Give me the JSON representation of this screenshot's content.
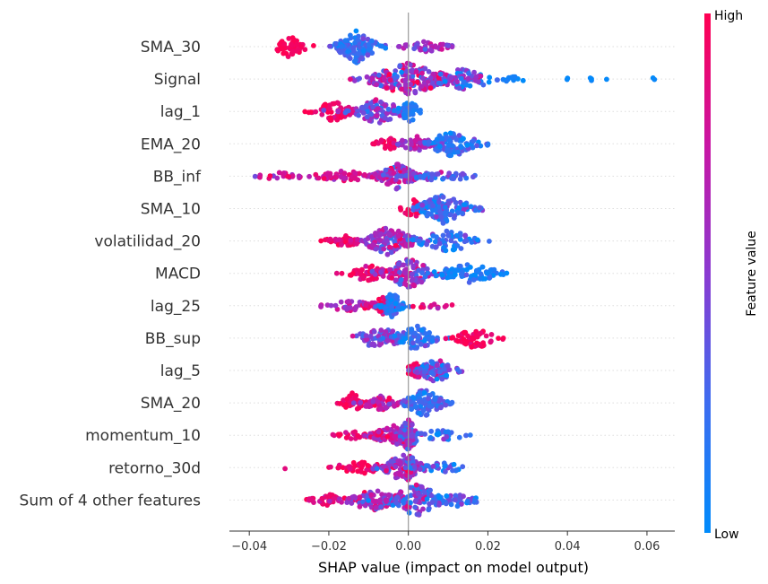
{
  "chart_data": {
    "type": "beeswarm",
    "xlabel": "SHAP value (impact on model output)",
    "xlim": [
      -0.045,
      0.067
    ],
    "xticks": [
      -0.04,
      -0.02,
      0.0,
      0.02,
      0.04,
      0.06
    ],
    "xtick_labels": [
      "−0.04",
      "−0.02",
      "0.00",
      "0.02",
      "0.04",
      "0.06"
    ],
    "colorbar": {
      "label": "Feature value",
      "high_label": "High",
      "low_label": "Low",
      "high_color": "#ff0052",
      "low_color": "#008bfb"
    },
    "features": [
      {
        "name": "SMA_30",
        "min": -0.033,
        "max": 0.011,
        "clusters": [
          {
            "center": -0.03,
            "spread": 0.0025,
            "n": 45,
            "value": 0.98,
            "vsd": 0.04,
            "height": 1.0
          },
          {
            "center": -0.013,
            "spread": 0.003,
            "n": 120,
            "value": 0.22,
            "vsd": 0.12,
            "height": 1.5
          },
          {
            "center": 0.004,
            "spread": 0.004,
            "n": 40,
            "value": 0.55,
            "vsd": 0.12,
            "height": 0.5
          }
        ]
      },
      {
        "name": "Signal",
        "min": -0.015,
        "max": 0.063,
        "clusters": [
          {
            "center": 0.0,
            "spread": 0.006,
            "n": 190,
            "value": 0.6,
            "vsd": 0.25,
            "height": 1.5
          },
          {
            "center": 0.014,
            "spread": 0.005,
            "n": 70,
            "value": 0.35,
            "vsd": 0.25,
            "height": 1.0
          },
          {
            "center": 0.027,
            "spread": 0.003,
            "n": 10,
            "value": 0.05,
            "vsd": 0.05,
            "height": 0.3
          },
          {
            "center": 0.045,
            "spread": 0.005,
            "n": 6,
            "value": 0.02,
            "vsd": 0.02,
            "height": 0.15
          },
          {
            "center": 0.0615,
            "spread": 0.0005,
            "n": 2,
            "value": 0.02,
            "vsd": 0.02,
            "height": 0.1
          }
        ]
      },
      {
        "name": "lag_1",
        "min": -0.026,
        "max": 0.003,
        "clusters": [
          {
            "center": -0.019,
            "spread": 0.003,
            "n": 60,
            "value": 0.92,
            "vsd": 0.08,
            "height": 1.0
          },
          {
            "center": -0.008,
            "spread": 0.004,
            "n": 90,
            "value": 0.5,
            "vsd": 0.2,
            "height": 1.2
          },
          {
            "center": 0.0,
            "spread": 0.0015,
            "n": 40,
            "value": 0.12,
            "vsd": 0.08,
            "height": 1.2
          }
        ]
      },
      {
        "name": "EMA_20",
        "min": -0.009,
        "max": 0.02,
        "clusters": [
          {
            "center": -0.005,
            "spread": 0.002,
            "n": 30,
            "value": 0.95,
            "vsd": 0.05,
            "height": 0.6
          },
          {
            "center": 0.002,
            "spread": 0.003,
            "n": 50,
            "value": 0.6,
            "vsd": 0.15,
            "height": 0.7
          },
          {
            "center": 0.011,
            "spread": 0.004,
            "n": 100,
            "value": 0.2,
            "vsd": 0.15,
            "height": 1.2
          }
        ]
      },
      {
        "name": "BB_inf",
        "min": -0.039,
        "max": 0.021,
        "clusters": [
          {
            "center": -0.032,
            "spread": 0.004,
            "n": 25,
            "value": 0.75,
            "vsd": 0.12,
            "height": 0.35
          },
          {
            "center": -0.016,
            "spread": 0.005,
            "n": 50,
            "value": 0.8,
            "vsd": 0.12,
            "height": 0.5
          },
          {
            "center": -0.003,
            "spread": 0.003,
            "n": 110,
            "value": 0.6,
            "vsd": 0.2,
            "height": 1.2
          },
          {
            "center": 0.008,
            "spread": 0.005,
            "n": 40,
            "value": 0.3,
            "vsd": 0.15,
            "height": 0.5
          }
        ]
      },
      {
        "name": "SMA_10",
        "min": -0.002,
        "max": 0.019,
        "clusters": [
          {
            "center": 0.001,
            "spread": 0.0015,
            "n": 40,
            "value": 0.95,
            "vsd": 0.05,
            "height": 1.0
          },
          {
            "center": 0.009,
            "spread": 0.004,
            "n": 130,
            "value": 0.25,
            "vsd": 0.15,
            "height": 1.4
          }
        ]
      },
      {
        "name": "volatilidad_20",
        "min": -0.023,
        "max": 0.023,
        "clusters": [
          {
            "center": -0.016,
            "spread": 0.003,
            "n": 40,
            "value": 0.9,
            "vsd": 0.1,
            "height": 0.5
          },
          {
            "center": -0.005,
            "spread": 0.004,
            "n": 120,
            "value": 0.6,
            "vsd": 0.2,
            "height": 1.3
          },
          {
            "center": 0.01,
            "spread": 0.005,
            "n": 70,
            "value": 0.25,
            "vsd": 0.2,
            "height": 1.0
          }
        ]
      },
      {
        "name": "MACD",
        "min": -0.018,
        "max": 0.026,
        "clusters": [
          {
            "center": -0.01,
            "spread": 0.003,
            "n": 60,
            "value": 0.9,
            "vsd": 0.08,
            "height": 0.8
          },
          {
            "center": 0.0,
            "spread": 0.004,
            "n": 110,
            "value": 0.55,
            "vsd": 0.2,
            "height": 1.4
          },
          {
            "center": 0.015,
            "spread": 0.005,
            "n": 80,
            "value": 0.12,
            "vsd": 0.1,
            "height": 0.9
          }
        ]
      },
      {
        "name": "lag_25",
        "min": -0.022,
        "max": 0.011,
        "clusters": [
          {
            "center": -0.015,
            "spread": 0.004,
            "n": 40,
            "value": 0.7,
            "vsd": 0.15,
            "height": 0.5
          },
          {
            "center": -0.006,
            "spread": 0.002,
            "n": 60,
            "value": 0.85,
            "vsd": 0.12,
            "height": 1.0
          },
          {
            "center": -0.004,
            "spread": 0.0015,
            "n": 60,
            "value": 0.15,
            "vsd": 0.1,
            "height": 1.3
          },
          {
            "center": 0.006,
            "spread": 0.003,
            "n": 15,
            "value": 0.85,
            "vsd": 0.1,
            "height": 0.3
          }
        ]
      },
      {
        "name": "BB_sup",
        "min": -0.014,
        "max": 0.026,
        "clusters": [
          {
            "center": -0.007,
            "spread": 0.004,
            "n": 70,
            "value": 0.45,
            "vsd": 0.15,
            "height": 1.0
          },
          {
            "center": 0.002,
            "spread": 0.003,
            "n": 70,
            "value": 0.2,
            "vsd": 0.12,
            "height": 1.2
          },
          {
            "center": 0.017,
            "spread": 0.003,
            "n": 60,
            "value": 0.95,
            "vsd": 0.05,
            "height": 1.0
          }
        ]
      },
      {
        "name": "lag_5",
        "min": 0.0,
        "max": 0.016,
        "clusters": [
          {
            "center": 0.002,
            "spread": 0.0015,
            "n": 30,
            "value": 0.9,
            "vsd": 0.1,
            "height": 0.8
          },
          {
            "center": 0.007,
            "spread": 0.003,
            "n": 80,
            "value": 0.35,
            "vsd": 0.2,
            "height": 1.1
          }
        ]
      },
      {
        "name": "SMA_20",
        "min": -0.018,
        "max": 0.011,
        "clusters": [
          {
            "center": -0.014,
            "spread": 0.0015,
            "n": 40,
            "value": 0.95,
            "vsd": 0.05,
            "height": 1.0
          },
          {
            "center": -0.007,
            "spread": 0.003,
            "n": 50,
            "value": 0.75,
            "vsd": 0.15,
            "height": 0.7
          },
          {
            "center": 0.004,
            "spread": 0.003,
            "n": 110,
            "value": 0.25,
            "vsd": 0.15,
            "height": 1.3
          }
        ]
      },
      {
        "name": "momentum_10",
        "min": -0.019,
        "max": 0.028,
        "clusters": [
          {
            "center": -0.014,
            "spread": 0.003,
            "n": 20,
            "value": 0.9,
            "vsd": 0.1,
            "height": 0.35
          },
          {
            "center": -0.004,
            "spread": 0.003,
            "n": 90,
            "value": 0.75,
            "vsd": 0.15,
            "height": 1.0
          },
          {
            "center": 0.0,
            "spread": 0.0015,
            "n": 80,
            "value": 0.45,
            "vsd": 0.2,
            "height": 1.5
          },
          {
            "center": 0.008,
            "spread": 0.004,
            "n": 30,
            "value": 0.25,
            "vsd": 0.15,
            "height": 0.5
          }
        ]
      },
      {
        "name": "retorno_30d",
        "min": -0.031,
        "max": 0.015,
        "clusters": [
          {
            "center": -0.031,
            "spread": 0.0003,
            "n": 1,
            "value": 0.9,
            "vsd": 0.05,
            "height": 0.1
          },
          {
            "center": -0.012,
            "spread": 0.004,
            "n": 50,
            "value": 0.95,
            "vsd": 0.05,
            "height": 0.6
          },
          {
            "center": -0.001,
            "spread": 0.003,
            "n": 110,
            "value": 0.55,
            "vsd": 0.2,
            "height": 1.4
          },
          {
            "center": 0.008,
            "spread": 0.004,
            "n": 30,
            "value": 0.25,
            "vsd": 0.15,
            "height": 0.5
          }
        ]
      },
      {
        "name": "Sum of 4 other features",
        "min": -0.026,
        "max": 0.021,
        "clusters": [
          {
            "center": -0.02,
            "spread": 0.003,
            "n": 40,
            "value": 0.9,
            "vsd": 0.08,
            "height": 0.6
          },
          {
            "center": -0.009,
            "spread": 0.004,
            "n": 80,
            "value": 0.6,
            "vsd": 0.2,
            "height": 1.0
          },
          {
            "center": 0.002,
            "spread": 0.004,
            "n": 120,
            "value": 0.4,
            "vsd": 0.25,
            "height": 1.5
          },
          {
            "center": 0.012,
            "spread": 0.004,
            "n": 40,
            "value": 0.25,
            "vsd": 0.15,
            "height": 0.6
          }
        ]
      }
    ]
  }
}
